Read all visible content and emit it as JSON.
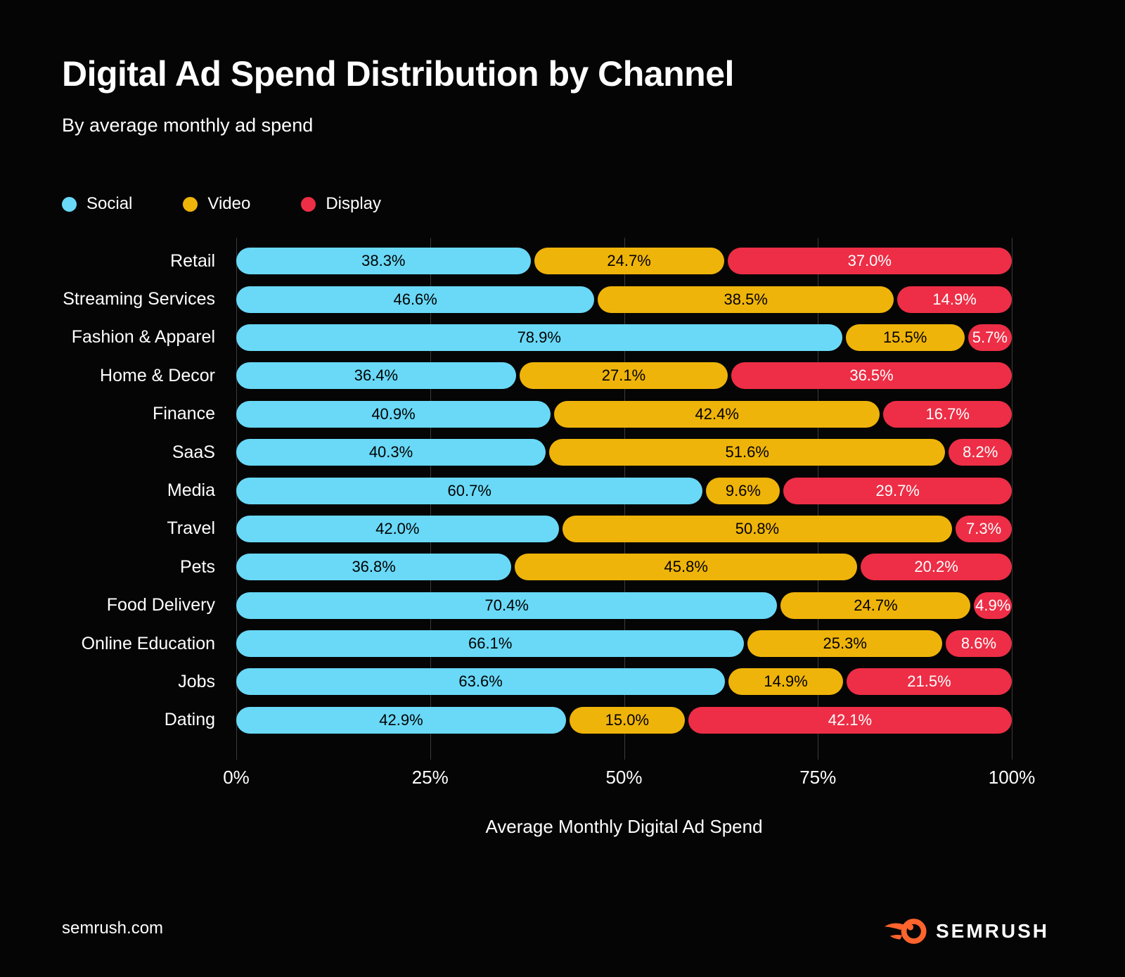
{
  "title": "Digital Ad Spend Distribution by Channel",
  "subtitle": "By average monthly ad spend",
  "legend": [
    {
      "label": "Social",
      "color": "#69D9F7"
    },
    {
      "label": "Video",
      "color": "#EFB409"
    },
    {
      "label": "Display",
      "color": "#ED2E46"
    }
  ],
  "chart_data": {
    "type": "bar",
    "orientation": "horizontal",
    "stacked": true,
    "categories": [
      "Retail",
      "Streaming Services",
      "Fashion & Apparel",
      "Home & Decor",
      "Finance",
      "SaaS",
      "Media",
      "Travel",
      "Pets",
      "Food Delivery",
      "Online Education",
      "Jobs",
      "Dating"
    ],
    "series": [
      {
        "name": "Social",
        "color": "#69D9F7",
        "label_color": "#000000",
        "values": [
          38.3,
          46.6,
          78.9,
          36.4,
          40.9,
          40.3,
          60.7,
          42.0,
          36.8,
          70.4,
          66.1,
          63.6,
          42.9
        ]
      },
      {
        "name": "Video",
        "color": "#EFB409",
        "label_color": "#000000",
        "values": [
          24.7,
          38.5,
          15.5,
          27.1,
          42.4,
          51.6,
          9.6,
          50.8,
          45.8,
          24.7,
          25.3,
          14.9,
          15.0
        ]
      },
      {
        "name": "Display",
        "color": "#ED2E46",
        "label_color": "#FFFFFF",
        "values": [
          37.0,
          14.9,
          5.7,
          36.5,
          16.7,
          8.2,
          29.7,
          7.3,
          20.2,
          4.9,
          8.6,
          21.5,
          42.1
        ]
      }
    ],
    "value_suffix": "%",
    "xlabel": "Average Monthly Digital Ad Spend",
    "x_ticks": [
      "0%",
      "25%",
      "50%",
      "75%",
      "100%"
    ],
    "xlim": [
      0,
      100
    ],
    "grid": true,
    "legend_position": "top-left",
    "background": "#050505",
    "gridline_color": "#3b3b3b"
  },
  "footer": {
    "website": "semrush.com",
    "brand": "SEMRUSH",
    "brand_color": "#FF642D"
  }
}
